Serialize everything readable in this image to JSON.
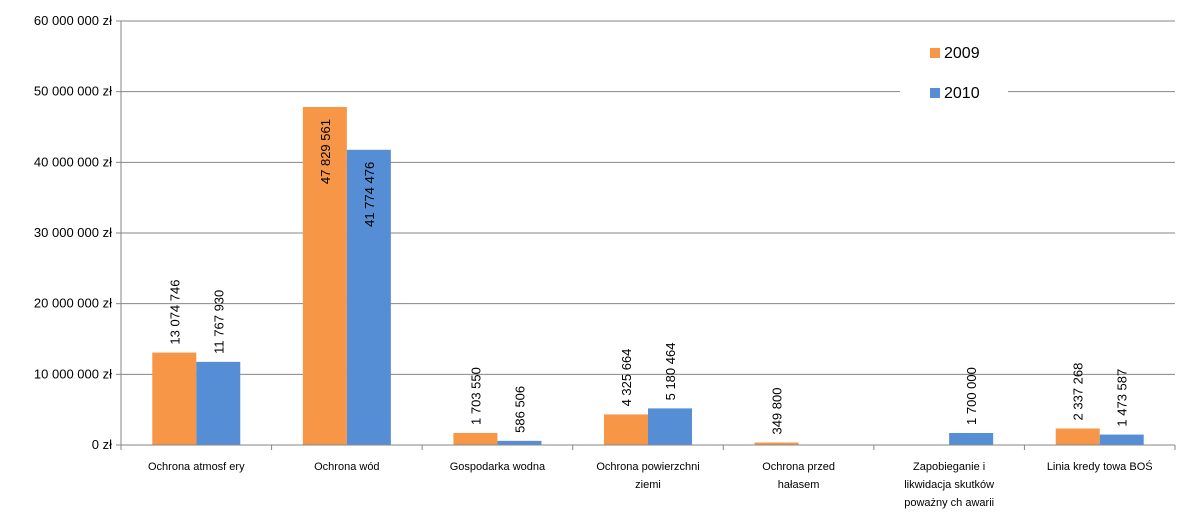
{
  "chart_data": {
    "type": "bar",
    "title": "",
    "xlabel": "",
    "ylabel": "",
    "ylim": [
      0,
      60000000
    ],
    "yticks": [
      0,
      10000000,
      20000000,
      30000000,
      40000000,
      50000000,
      60000000
    ],
    "ytick_labels": [
      "0 zł",
      "10 000 000 zł",
      "20 000 000 zł",
      "30 000 000 zł",
      "40 000 000 zł",
      "50 000 000 zł",
      "60 000 000 zł"
    ],
    "grid": true,
    "legend_position": "top-right",
    "categories": [
      [
        "Ochrona atmosf ery"
      ],
      [
        "Ochrona wód"
      ],
      [
        "Gospodarka wodna"
      ],
      [
        "Ochrona powierzchni",
        "ziemi"
      ],
      [
        "Ochrona przed",
        "hałasem"
      ],
      [
        "Zapobieganie i",
        "likwidacja skutków",
        "poważny ch awarii"
      ],
      [
        "Linia kredy towa BOŚ"
      ]
    ],
    "series": [
      {
        "name": "2009",
        "color": "#f79646",
        "values": [
          13074746,
          47829561,
          1703550,
          4325664,
          349800,
          null,
          2337268
        ],
        "labels": [
          "13 074 746",
          "47 829 561",
          "1 703 550",
          "4 325 664",
          "349 800",
          "",
          "2 337 268"
        ]
      },
      {
        "name": "2010",
        "color": "#558ed5",
        "values": [
          11767930,
          41774476,
          586506,
          5180464,
          null,
          1700000,
          1473587
        ],
        "labels": [
          "11 767 930",
          "41 774 476",
          "586 506",
          "5 180 464",
          "",
          "1 700 000",
          "1 473 587"
        ]
      }
    ]
  }
}
